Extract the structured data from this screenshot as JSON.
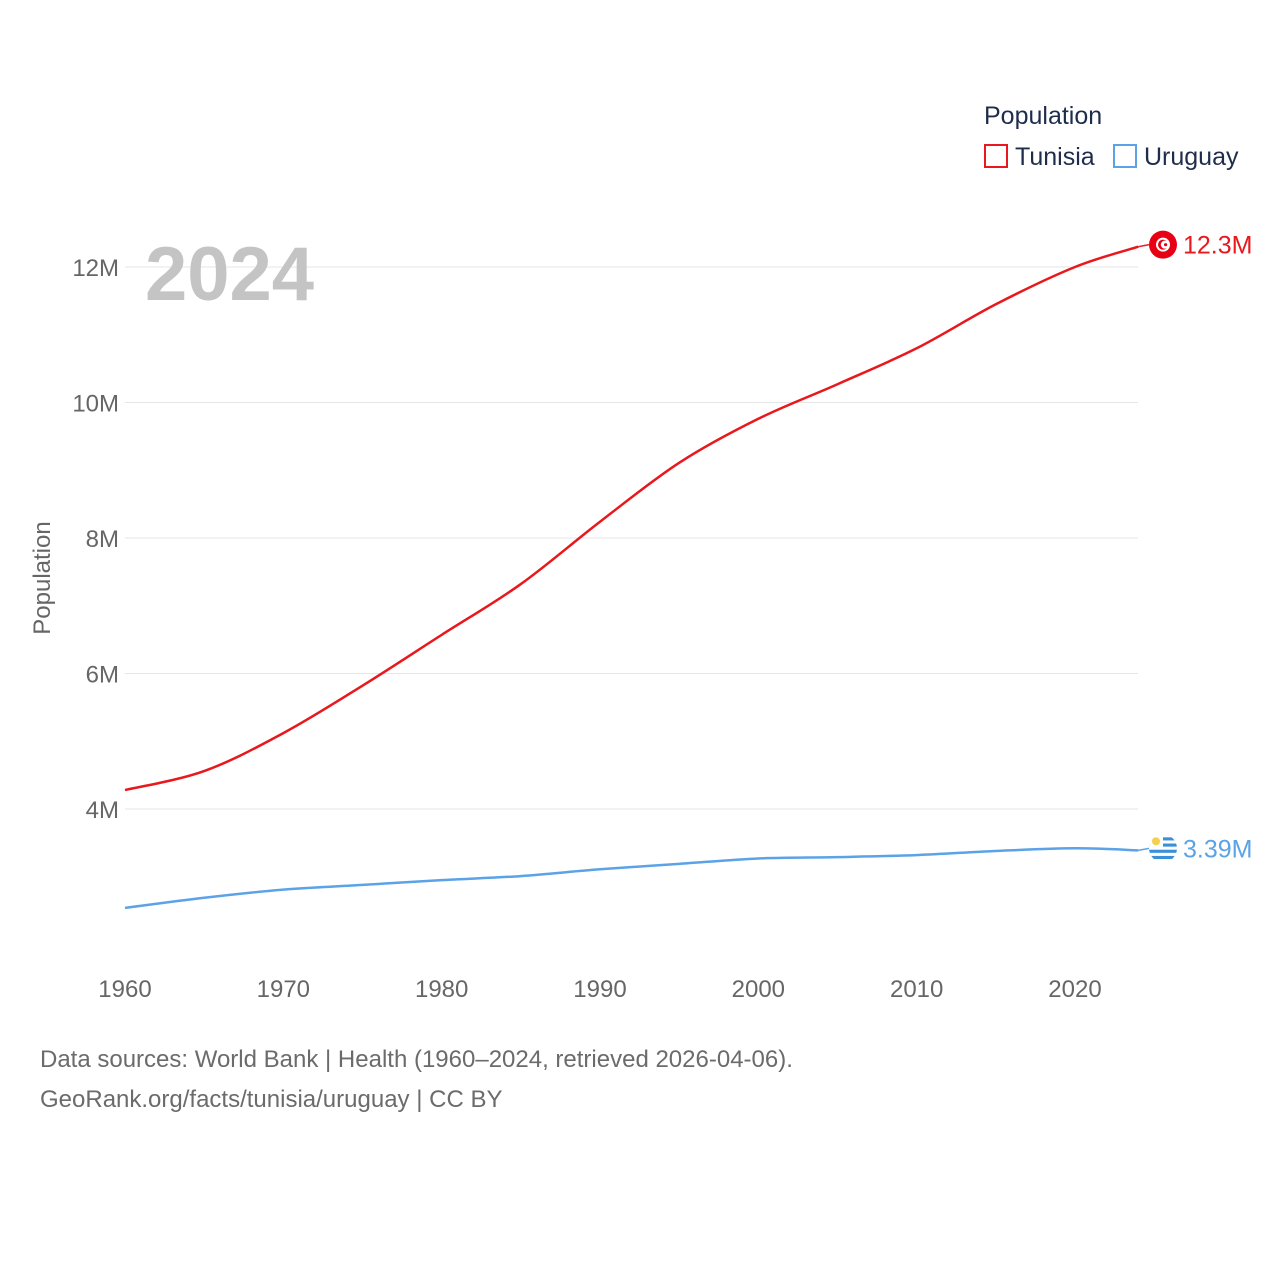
{
  "chart_data": {
    "type": "line",
    "current_year_label": "2024",
    "ylabel": "Population",
    "xlabel": "",
    "xlim": [
      1960,
      2024
    ],
    "ylim": [
      1500000,
      13000000
    ],
    "x_ticks": [
      1960,
      1970,
      1980,
      1990,
      2000,
      2010,
      2020
    ],
    "y_ticks": [
      4000000,
      6000000,
      8000000,
      10000000,
      12000000
    ],
    "y_tick_labels": [
      "4M",
      "6M",
      "8M",
      "10M",
      "12M"
    ],
    "legend": {
      "title": "Population",
      "position": "top-right"
    },
    "grid": true,
    "series": [
      {
        "name": "Tunisia",
        "color": "#e8181c",
        "end_label": "12.3M",
        "flag": "tunisia-flag",
        "x": [
          1960,
          1965,
          1970,
          1975,
          1980,
          1985,
          1990,
          1995,
          2000,
          2005,
          2010,
          2015,
          2020,
          2024
        ],
        "values": [
          4280000,
          4560000,
          5120000,
          5820000,
          6570000,
          7320000,
          8240000,
          9110000,
          9760000,
          10270000,
          10800000,
          11450000,
          12000000,
          12300000
        ]
      },
      {
        "name": "Uruguay",
        "color": "#5ba3e6",
        "end_label": "3.39M",
        "flag": "uruguay-flag",
        "x": [
          1960,
          1965,
          1970,
          1975,
          1980,
          1985,
          1990,
          1995,
          2000,
          2005,
          2010,
          2015,
          2020,
          2024
        ],
        "values": [
          2540000,
          2690000,
          2810000,
          2880000,
          2950000,
          3010000,
          3110000,
          3190000,
          3270000,
          3290000,
          3320000,
          3380000,
          3420000,
          3390000
        ]
      }
    ]
  },
  "footer": {
    "sources": "Data sources: World Bank | Health (1960–2024, retrieved 2026-04-06).",
    "credit": "GeoRank.org/facts/tunisia/uruguay | CC BY"
  }
}
